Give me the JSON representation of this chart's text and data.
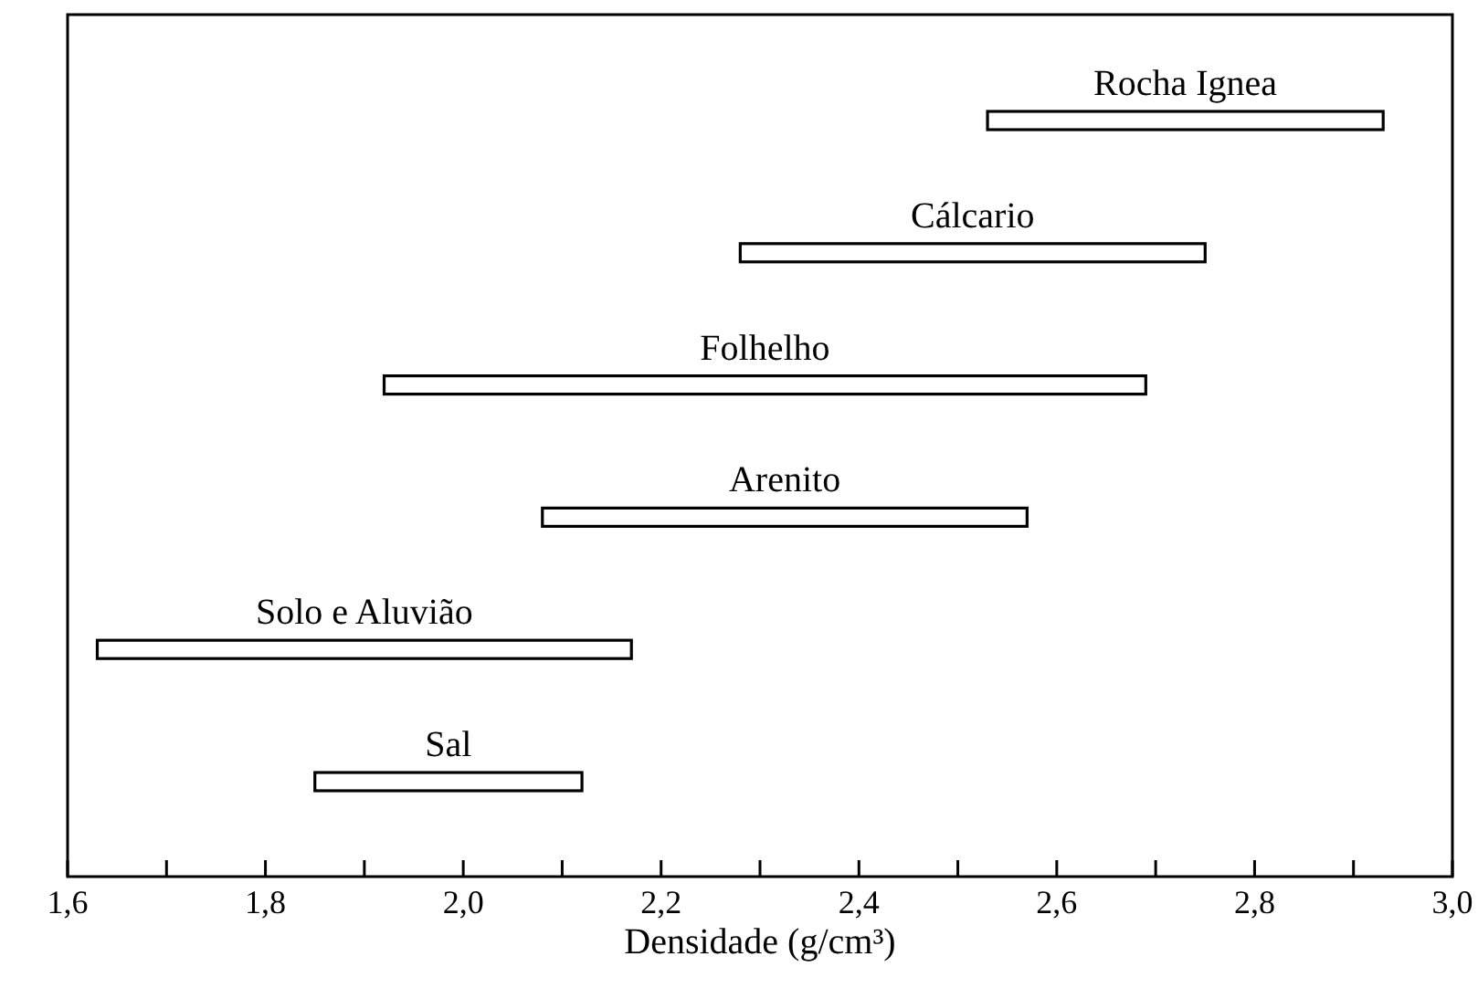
{
  "chart_data": {
    "type": "bar",
    "orientation": "horizontal",
    "categories": [
      "Rocha Ignea",
      "Cálcario",
      "Folhelho",
      "Arenito",
      "Solo e Aluvião",
      "Sal"
    ],
    "base": [
      2.53,
      2.28,
      1.92,
      2.08,
      1.63,
      1.85
    ],
    "values": [
      0.4,
      0.47,
      0.77,
      0.49,
      0.54,
      0.27
    ],
    "color": "#ffffff",
    "xlabel": "Densidade (g/cm³)",
    "xlim": [
      1.6,
      3.0
    ],
    "xticks": [
      {
        "value": 1.6,
        "label": "1,6"
      },
      {
        "value": 1.7,
        "label": null
      },
      {
        "value": 1.8,
        "label": "1,8"
      },
      {
        "value": 1.9,
        "label": null
      },
      {
        "value": 2.0,
        "label": "2,0"
      },
      {
        "value": 2.1,
        "label": null
      },
      {
        "value": 2.2,
        "label": "2,2"
      },
      {
        "value": 2.3,
        "label": null
      },
      {
        "value": 2.4,
        "label": "2,4"
      },
      {
        "value": 2.5,
        "label": null
      },
      {
        "value": 2.6,
        "label": "2,6"
      },
      {
        "value": 2.7,
        "label": null
      },
      {
        "value": 2.8,
        "label": "2,8"
      },
      {
        "value": 2.9,
        "label": null
      },
      {
        "value": 3.0,
        "label": "3,0"
      }
    ],
    "tick_labels": "x",
    "grid": false
  }
}
